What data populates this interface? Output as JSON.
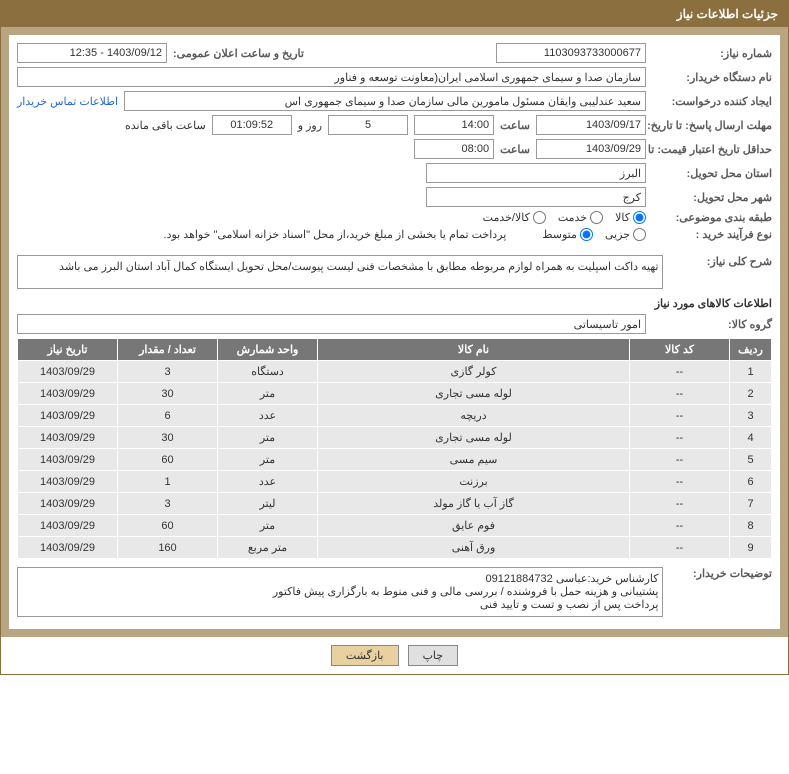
{
  "header": {
    "title": "جزئیات اطلاعات نیاز"
  },
  "fields": {
    "need_number_label": "شماره نیاز:",
    "need_number": "1103093733000677",
    "announce_label": "تاریخ و ساعت اعلان عمومی:",
    "announce": "1403/09/12 - 12:35",
    "buyer_org_label": "نام دستگاه خریدار:",
    "buyer_org": "سازمان صدا و سیمای جمهوری اسلامی ایران(معاونت توسعه و فناور",
    "requester_label": "ایجاد کننده درخواست:",
    "requester": "سعید عندلیبی وایقان مسئول مامورین مالی  سازمان صدا و سیمای جمهوری اس",
    "contact_link": "اطلاعات تماس خریدار",
    "deadline_send_label": "مهلت ارسال پاسخ: تا تاریخ:",
    "deadline_send_date": "1403/09/17",
    "time_label": "ساعت",
    "deadline_send_time": "14:00",
    "days_count": "5",
    "days_label": "روز و",
    "countdown": "01:09:52",
    "remaining_label": "ساعت باقی مانده",
    "validity_label": "حداقل تاریخ اعتبار قیمت: تا تاریخ:",
    "validity_date": "1403/09/29",
    "validity_time": "08:00",
    "province_label": "استان محل تحویل:",
    "province": "البرز",
    "city_label": "شهر محل تحویل:",
    "city": "کرج",
    "category_label": "طبقه بندی موضوعی:",
    "cat_kala": "کالا",
    "cat_khadamat": "خدمت",
    "cat_kala_khadamat": "کالا/خدمت",
    "process_label": "نوع فرآیند خرید :",
    "proc_small": "جزیی",
    "proc_medium": "متوسط",
    "payment_note": "پرداخت تمام یا بخشی از مبلغ خرید،از محل \"اسناد خزانه اسلامی\" خواهد بود.",
    "description_label": "شرح کلی نیاز:",
    "description": "تهیه داکت اسپلیت به همراه لوازم مربوطه مطابق با مشخصات فنی لیست پیوست/محل تحویل ایستگاه کمال آباد استان البرز می باشد",
    "items_list_label": "اطلاعات کالاهای مورد نیاز",
    "group_label": "گروه کالا:",
    "group": "امور تاسیساتی",
    "buyer_notes_label": "توضیحات خریدار:",
    "buyer_notes": "کارشناس خرید:عباسی 09121884732\nپشتیبانی و هزینه حمل با فروشنده / بررسی مالی و فنی منوط به بارگزاری پیش فاکتور\nپرداخت پس از نصب و تست و تایید فنی"
  },
  "table": {
    "headers": {
      "row": "ردیف",
      "code": "کد کالا",
      "name": "نام کالا",
      "unit": "واحد شمارش",
      "qty": "تعداد / مقدار",
      "date": "تاریخ نیاز"
    },
    "rows": [
      {
        "row": "1",
        "code": "--",
        "name": "کولر گازی",
        "unit": "دستگاه",
        "qty": "3",
        "date": "1403/09/29"
      },
      {
        "row": "2",
        "code": "--",
        "name": "لوله مسی تجاری",
        "unit": "متر",
        "qty": "30",
        "date": "1403/09/29"
      },
      {
        "row": "3",
        "code": "--",
        "name": "دریچه",
        "unit": "عدد",
        "qty": "6",
        "date": "1403/09/29"
      },
      {
        "row": "4",
        "code": "--",
        "name": "لوله مسی تجاری",
        "unit": "متر",
        "qty": "30",
        "date": "1403/09/29"
      },
      {
        "row": "5",
        "code": "--",
        "name": "سیم مسی",
        "unit": "متر",
        "qty": "60",
        "date": "1403/09/29"
      },
      {
        "row": "6",
        "code": "--",
        "name": "برزنت",
        "unit": "عدد",
        "qty": "1",
        "date": "1403/09/29"
      },
      {
        "row": "7",
        "code": "--",
        "name": "گاز آب یا گاز مولد",
        "unit": "لیتر",
        "qty": "3",
        "date": "1403/09/29"
      },
      {
        "row": "8",
        "code": "--",
        "name": "فوم عایق",
        "unit": "متر",
        "qty": "60",
        "date": "1403/09/29"
      },
      {
        "row": "9",
        "code": "--",
        "name": "ورق آهنی",
        "unit": "متر مربع",
        "qty": "160",
        "date": "1403/09/29"
      }
    ]
  },
  "buttons": {
    "print": "چاپ",
    "back": "بازگشت"
  },
  "styling": {
    "header_bg": "#8b6f3e",
    "border_color": "#b8a582",
    "table_header_bg": "#777777",
    "table_row_bg": "#e8e8e8",
    "link_color": "#2468d4",
    "btn_back_bg": "#e8d0a0"
  }
}
